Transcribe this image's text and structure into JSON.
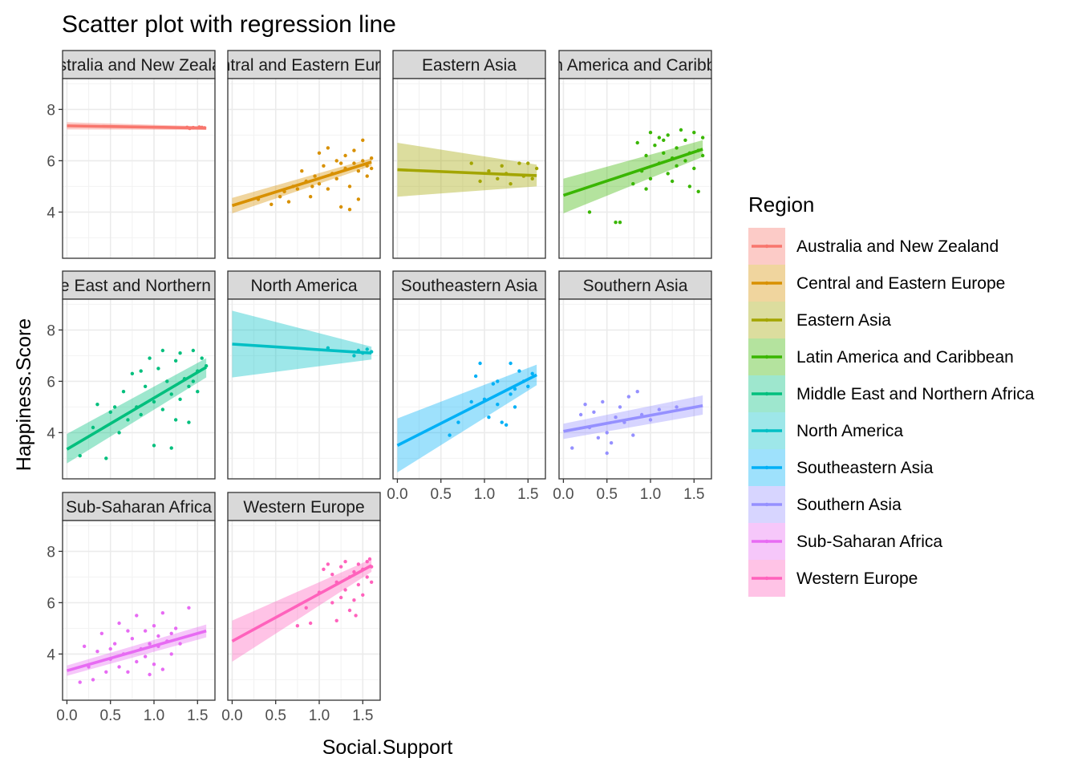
{
  "chart_data": {
    "type": "scatter",
    "title": "Scatter plot with regression line",
    "xlabel": "Social.Support",
    "ylabel": "Happiness.Score",
    "xlim": [
      -0.05,
      1.7
    ],
    "ylim": [
      2.2,
      9.2
    ],
    "x_ticks": [
      "0.0",
      "0.5",
      "1.0",
      "1.5"
    ],
    "y_ticks": [
      "4",
      "6",
      "8"
    ],
    "x_tick_values": [
      0,
      0.5,
      1.0,
      1.5
    ],
    "y_tick_values": [
      4,
      6,
      8
    ],
    "grid": true,
    "legend_title": "Region",
    "legend_position": "right",
    "panels": [
      {
        "name": "Australia and New Zealand",
        "strip_label": "Australia and New Zealand",
        "color": "#F8766D",
        "line": {
          "x0": 0.0,
          "y0": 7.36,
          "x1": 1.6,
          "y1": 7.27
        },
        "band": {
          "lower0": 7.22,
          "upper0": 7.5,
          "lower1": 7.2,
          "upper1": 7.34
        },
        "points": [
          [
            1.38,
            7.3
          ],
          [
            1.45,
            7.29
          ],
          [
            1.52,
            7.31
          ],
          [
            1.58,
            7.28
          ],
          [
            1.41,
            7.26
          ],
          [
            1.55,
            7.3
          ]
        ]
      },
      {
        "name": "Central and Eastern Europe",
        "strip_label": "Central and Eastern Europe",
        "color": "#D89000",
        "line": {
          "x0": 0.0,
          "y0": 4.25,
          "x1": 1.6,
          "y1": 5.95
        },
        "band": {
          "lower0": 3.95,
          "upper0": 4.55,
          "lower1": 5.8,
          "upper1": 6.1
        },
        "points": [
          [
            0.3,
            4.5
          ],
          [
            0.45,
            4.3
          ],
          [
            0.6,
            4.8
          ],
          [
            0.65,
            4.4
          ],
          [
            0.7,
            5.0
          ],
          [
            0.75,
            4.9
          ],
          [
            0.8,
            5.6
          ],
          [
            0.85,
            5.2
          ],
          [
            0.9,
            4.6
          ],
          [
            0.95,
            5.4
          ],
          [
            1.0,
            5.1
          ],
          [
            1.0,
            6.3
          ],
          [
            1.05,
            5.8
          ],
          [
            1.1,
            6.5
          ],
          [
            1.1,
            4.9
          ],
          [
            1.15,
            5.5
          ],
          [
            1.2,
            5.3
          ],
          [
            1.2,
            6.0
          ],
          [
            1.25,
            4.2
          ],
          [
            1.3,
            5.7
          ],
          [
            1.3,
            6.2
          ],
          [
            1.35,
            5.0
          ],
          [
            1.4,
            5.9
          ],
          [
            1.4,
            6.4
          ],
          [
            1.45,
            5.6
          ],
          [
            1.45,
            4.5
          ],
          [
            1.5,
            6.0
          ],
          [
            1.5,
            6.8
          ],
          [
            1.55,
            5.8
          ],
          [
            1.55,
            5.4
          ],
          [
            1.6,
            6.1
          ],
          [
            1.6,
            5.7
          ],
          [
            1.35,
            4.1
          ],
          [
            1.25,
            5.9
          ],
          [
            0.55,
            4.6
          ],
          [
            0.92,
            5.0
          ]
        ]
      },
      {
        "name": "Eastern Asia",
        "strip_label": "Eastern Asia",
        "color": "#A3A500",
        "line": {
          "x0": 0.0,
          "y0": 5.65,
          "x1": 1.6,
          "y1": 5.42
        },
        "band": {
          "lower0": 4.6,
          "upper0": 6.7,
          "lower1": 5.0,
          "upper1": 5.85
        },
        "points": [
          [
            0.85,
            5.9
          ],
          [
            0.95,
            5.2
          ],
          [
            1.05,
            5.6
          ],
          [
            1.15,
            5.3
          ],
          [
            1.2,
            5.8
          ],
          [
            1.3,
            5.1
          ],
          [
            1.4,
            5.9
          ],
          [
            1.45,
            5.4
          ],
          [
            1.5,
            5.9
          ],
          [
            1.55,
            5.3
          ],
          [
            1.6,
            5.7
          ],
          [
            1.25,
            5.5
          ]
        ]
      },
      {
        "name": "Latin America and Caribbean",
        "strip_label": "Latin America and Caribbean",
        "color": "#39B600",
        "line": {
          "x0": 0.0,
          "y0": 4.65,
          "x1": 1.6,
          "y1": 6.45
        },
        "band": {
          "lower0": 3.95,
          "upper0": 5.3,
          "lower1": 6.15,
          "upper1": 6.8
        },
        "points": [
          [
            0.3,
            4.0
          ],
          [
            0.6,
            3.6
          ],
          [
            0.65,
            3.6
          ],
          [
            0.8,
            5.1
          ],
          [
            0.85,
            6.7
          ],
          [
            0.9,
            5.6
          ],
          [
            0.95,
            6.2
          ],
          [
            1.0,
            7.1
          ],
          [
            1.0,
            5.3
          ],
          [
            1.05,
            6.6
          ],
          [
            1.1,
            5.9
          ],
          [
            1.1,
            6.9
          ],
          [
            1.15,
            6.3
          ],
          [
            1.2,
            5.5
          ],
          [
            1.2,
            7.0
          ],
          [
            1.25,
            6.1
          ],
          [
            1.3,
            6.5
          ],
          [
            1.3,
            5.8
          ],
          [
            1.35,
            7.2
          ],
          [
            1.4,
            6.0
          ],
          [
            1.4,
            6.8
          ],
          [
            1.45,
            5.0
          ],
          [
            1.45,
            6.3
          ],
          [
            1.5,
            7.1
          ],
          [
            1.5,
            5.7
          ],
          [
            1.55,
            6.4
          ],
          [
            1.55,
            4.8
          ],
          [
            1.6,
            6.9
          ],
          [
            1.6,
            6.2
          ],
          [
            1.25,
            5.2
          ],
          [
            0.95,
            4.9
          ],
          [
            1.15,
            6.8
          ]
        ]
      },
      {
        "name": "Middle East and Northern Africa",
        "strip_label": "Middle East and Northern Africa",
        "color": "#00BF7D",
        "line": {
          "x0": 0.0,
          "y0": 3.35,
          "x1": 1.6,
          "y1": 6.55
        },
        "band": {
          "lower0": 2.8,
          "upper0": 3.95,
          "lower1": 6.15,
          "upper1": 6.9
        },
        "points": [
          [
            0.15,
            3.1
          ],
          [
            0.3,
            4.2
          ],
          [
            0.35,
            5.1
          ],
          [
            0.45,
            3.0
          ],
          [
            0.5,
            4.8
          ],
          [
            0.6,
            4.0
          ],
          [
            0.65,
            5.6
          ],
          [
            0.7,
            4.5
          ],
          [
            0.75,
            6.3
          ],
          [
            0.8,
            5.0
          ],
          [
            0.85,
            4.7
          ],
          [
            0.9,
            5.8
          ],
          [
            0.95,
            6.9
          ],
          [
            1.0,
            5.2
          ],
          [
            1.0,
            3.5
          ],
          [
            1.05,
            6.5
          ],
          [
            1.1,
            4.9
          ],
          [
            1.1,
            7.2
          ],
          [
            1.15,
            6.0
          ],
          [
            1.2,
            5.5
          ],
          [
            1.2,
            3.4
          ],
          [
            1.25,
            6.8
          ],
          [
            1.3,
            5.3
          ],
          [
            1.3,
            7.1
          ],
          [
            1.35,
            6.1
          ],
          [
            1.4,
            5.8
          ],
          [
            1.4,
            4.4
          ],
          [
            1.45,
            7.2
          ],
          [
            1.5,
            6.4
          ],
          [
            1.5,
            5.6
          ],
          [
            1.55,
            6.9
          ],
          [
            1.6,
            6.6
          ],
          [
            0.55,
            5.0
          ],
          [
            0.85,
            6.4
          ],
          [
            1.25,
            4.5
          ],
          [
            1.45,
            6.0
          ]
        ]
      },
      {
        "name": "North America",
        "strip_label": "North America",
        "color": "#00BFC4",
        "line": {
          "x0": 0.0,
          "y0": 7.45,
          "x1": 1.6,
          "y1": 7.1
        },
        "band": {
          "lower0": 6.15,
          "upper0": 8.75,
          "lower1": 6.85,
          "upper1": 7.35
        },
        "points": [
          [
            1.1,
            7.3
          ],
          [
            1.4,
            7.0
          ],
          [
            1.45,
            7.2
          ],
          [
            1.5,
            7.1
          ],
          [
            1.55,
            7.25
          ],
          [
            1.6,
            7.15
          ]
        ]
      },
      {
        "name": "Southeastern Asia",
        "strip_label": "Southeastern Asia",
        "color": "#00B0F6",
        "line": {
          "x0": 0.0,
          "y0": 3.5,
          "x1": 1.6,
          "y1": 6.25
        },
        "band": {
          "lower0": 2.45,
          "upper0": 4.55,
          "lower1": 5.85,
          "upper1": 6.65
        },
        "points": [
          [
            0.6,
            3.9
          ],
          [
            0.7,
            4.4
          ],
          [
            0.85,
            5.2
          ],
          [
            0.9,
            6.2
          ],
          [
            0.95,
            6.7
          ],
          [
            1.0,
            5.3
          ],
          [
            1.05,
            4.6
          ],
          [
            1.1,
            5.9
          ],
          [
            1.15,
            6.0
          ],
          [
            1.2,
            4.4
          ],
          [
            1.25,
            4.3
          ],
          [
            1.3,
            5.5
          ],
          [
            1.3,
            6.7
          ],
          [
            1.35,
            5.0
          ],
          [
            1.4,
            6.4
          ],
          [
            1.45,
            6.0
          ],
          [
            1.5,
            5.8
          ],
          [
            1.55,
            6.3
          ],
          [
            1.15,
            5.1
          ],
          [
            1.35,
            5.7
          ]
        ]
      },
      {
        "name": "Southern Asia",
        "strip_label": "Southern Asia",
        "color": "#9590FF",
        "line": {
          "x0": 0.0,
          "y0": 4.05,
          "x1": 1.6,
          "y1": 5.05
        },
        "band": {
          "lower0": 3.75,
          "upper0": 4.35,
          "lower1": 4.7,
          "upper1": 5.45
        },
        "points": [
          [
            0.1,
            3.4
          ],
          [
            0.2,
            4.7
          ],
          [
            0.25,
            5.1
          ],
          [
            0.3,
            4.2
          ],
          [
            0.35,
            4.8
          ],
          [
            0.4,
            3.8
          ],
          [
            0.45,
            5.2
          ],
          [
            0.5,
            4.0
          ],
          [
            0.5,
            3.2
          ],
          [
            0.55,
            3.6
          ],
          [
            0.6,
            4.6
          ],
          [
            0.65,
            5.0
          ],
          [
            0.7,
            4.4
          ],
          [
            0.75,
            5.4
          ],
          [
            0.8,
            3.9
          ],
          [
            0.85,
            5.6
          ],
          [
            0.9,
            4.7
          ],
          [
            1.0,
            4.5
          ],
          [
            1.1,
            4.9
          ],
          [
            1.3,
            5.0
          ]
        ]
      },
      {
        "name": "Sub-Saharan Africa",
        "strip_label": "Sub-Saharan Africa",
        "color": "#E76BF3",
        "line": {
          "x0": 0.0,
          "y0": 3.35,
          "x1": 1.6,
          "y1": 4.9
        },
        "band": {
          "lower0": 3.15,
          "upper0": 3.55,
          "lower1": 4.65,
          "upper1": 5.15
        },
        "points": [
          [
            0.15,
            2.9
          ],
          [
            0.2,
            4.3
          ],
          [
            0.25,
            3.5
          ],
          [
            0.3,
            3.0
          ],
          [
            0.35,
            4.1
          ],
          [
            0.4,
            4.8
          ],
          [
            0.45,
            3.3
          ],
          [
            0.5,
            3.8
          ],
          [
            0.55,
            4.4
          ],
          [
            0.6,
            3.5
          ],
          [
            0.6,
            5.2
          ],
          [
            0.65,
            4.0
          ],
          [
            0.7,
            3.3
          ],
          [
            0.75,
            4.6
          ],
          [
            0.8,
            5.5
          ],
          [
            0.8,
            3.7
          ],
          [
            0.85,
            4.2
          ],
          [
            0.9,
            3.9
          ],
          [
            0.9,
            4.9
          ],
          [
            0.95,
            4.4
          ],
          [
            1.0,
            3.6
          ],
          [
            1.0,
            5.1
          ],
          [
            1.05,
            4.3
          ],
          [
            1.1,
            3.4
          ],
          [
            1.1,
            5.6
          ],
          [
            1.15,
            4.5
          ],
          [
            1.2,
            4.0
          ],
          [
            1.2,
            4.8
          ],
          [
            1.25,
            5.0
          ],
          [
            1.3,
            4.4
          ],
          [
            1.4,
            5.8
          ],
          [
            0.7,
            4.9
          ],
          [
            0.95,
            3.2
          ],
          [
            0.5,
            4.2
          ],
          [
            1.05,
            4.7
          ]
        ]
      },
      {
        "name": "Western Europe",
        "strip_label": "Western Europe",
        "color": "#FF62BC",
        "line": {
          "x0": 0.0,
          "y0": 4.5,
          "x1": 1.6,
          "y1": 7.45
        },
        "band": {
          "lower0": 3.7,
          "upper0": 5.3,
          "lower1": 7.2,
          "upper1": 7.7
        },
        "points": [
          [
            0.75,
            5.1
          ],
          [
            0.85,
            5.8
          ],
          [
            0.9,
            5.2
          ],
          [
            1.0,
            6.4
          ],
          [
            1.05,
            7.3
          ],
          [
            1.1,
            7.5
          ],
          [
            1.15,
            6.0
          ],
          [
            1.2,
            6.8
          ],
          [
            1.2,
            5.3
          ],
          [
            1.25,
            7.4
          ],
          [
            1.3,
            6.5
          ],
          [
            1.3,
            7.6
          ],
          [
            1.35,
            5.7
          ],
          [
            1.4,
            7.2
          ],
          [
            1.4,
            6.1
          ],
          [
            1.45,
            7.5
          ],
          [
            1.45,
            6.7
          ],
          [
            1.5,
            7.3
          ],
          [
            1.5,
            6.3
          ],
          [
            1.55,
            7.6
          ],
          [
            1.55,
            7.0
          ],
          [
            1.6,
            7.4
          ],
          [
            1.6,
            6.8
          ],
          [
            1.35,
            7.0
          ],
          [
            1.25,
            6.2
          ],
          [
            1.15,
            7.1
          ],
          [
            1.42,
            5.5
          ],
          [
            1.58,
            7.7
          ]
        ]
      }
    ]
  }
}
